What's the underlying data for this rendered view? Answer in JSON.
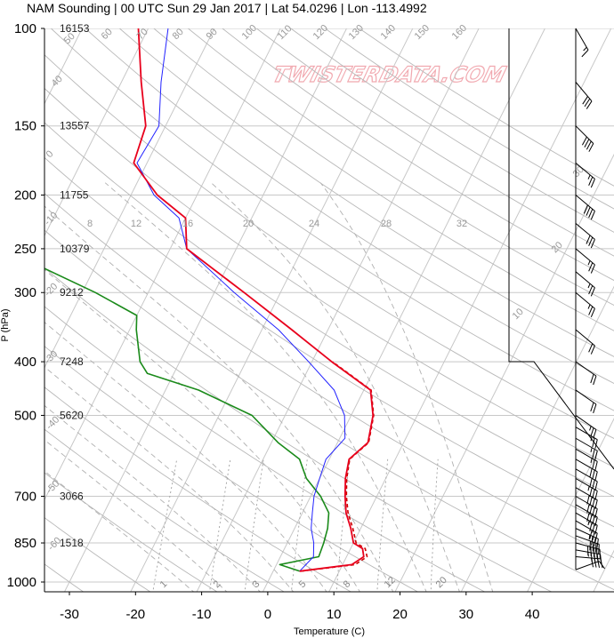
{
  "title": "NAM Sounding | 00 UTC Sun 29 Jan 2017 | Lat 54.0296 | Lon -113.4992",
  "watermark": "TWISTERDATA.COM",
  "colors": {
    "temperature": "#e8001c",
    "dewpoint": "#1a8a1a",
    "parcel": "#2222ff",
    "virtual_temp": "#cc0000",
    "grid": "#c8c8c8",
    "dry_adiabat": "#b8b8b8",
    "moist_adiabat": "#b0b0b0",
    "mixing_ratio": "#a0a0a0",
    "wind_barb": "#000000"
  },
  "chart_data": {
    "type": "skew-t log-p sounding",
    "title": "NAM Sounding | 00 UTC Sun 29 Jan 2017 | Lat 54.0296 | Lon -113.4992",
    "xlabel": "Temperature (C)",
    "ylabel": "P (hPa)",
    "xlim": [
      -34,
      50
    ],
    "ylim": [
      1050,
      100
    ],
    "y_scale": "log",
    "grid": true,
    "x_ticks": [
      -30,
      -20,
      -10,
      0,
      10,
      20,
      30,
      40
    ],
    "y_ticks": [
      100,
      150,
      200,
      250,
      300,
      400,
      500,
      700,
      850,
      1000
    ],
    "height_labels": [
      {
        "p": 100,
        "height_m": "16153"
      },
      {
        "p": 150,
        "height_m": "13557"
      },
      {
        "p": 200,
        "height_m": "11755"
      },
      {
        "p": 250,
        "height_m": "10379"
      },
      {
        "p": 300,
        "height_m": "9212"
      },
      {
        "p": 400,
        "height_m": "7248"
      },
      {
        "p": 500,
        "height_m": "5620"
      },
      {
        "p": 700,
        "height_m": "3066"
      },
      {
        "p": 850,
        "height_m": "1518"
      }
    ],
    "isotherm_labels": [
      {
        "t": -60,
        "label": "-60"
      },
      {
        "t": -50,
        "label": "-50"
      },
      {
        "t": -40,
        "label": "-40"
      },
      {
        "t": -30,
        "label": "-30"
      },
      {
        "t": -20,
        "label": "-20"
      },
      {
        "t": -10,
        "label": "-10"
      },
      {
        "t": 0,
        "label": "0"
      },
      {
        "t": 10,
        "label": "10"
      },
      {
        "t": 20,
        "label": "20"
      },
      {
        "t": 30,
        "label": "30"
      }
    ],
    "dry_adiabat_labels": [
      "40",
      "50",
      "60",
      "70",
      "80",
      "90",
      "100",
      "110",
      "120",
      "130",
      "140",
      "150",
      "160"
    ],
    "theta_e_labels": [
      "8",
      "12",
      "16",
      "20",
      "24",
      "28",
      "32"
    ],
    "mixing_ratio_labels": [
      "1",
      "2",
      "3",
      "5",
      "8",
      "12",
      "20"
    ],
    "series": [
      {
        "name": "Temperature",
        "points": [
          [
            956,
            4.0
          ],
          [
            930,
            11.4
          ],
          [
            900,
            12.6
          ],
          [
            870,
            11.8
          ],
          [
            850,
            10.0
          ],
          [
            800,
            8.5
          ],
          [
            750,
            6.6
          ],
          [
            700,
            5.2
          ],
          [
            650,
            3.9
          ],
          [
            600,
            3.0
          ],
          [
            560,
            4.6
          ],
          [
            500,
            3.3
          ],
          [
            450,
            1.0
          ],
          [
            400,
            -7.0
          ],
          [
            350,
            -15.5
          ],
          [
            300,
            -25.5
          ],
          [
            250,
            -37.5
          ],
          [
            220,
            -40.0
          ],
          [
            200,
            -46.0
          ],
          [
            175,
            -52.0
          ],
          [
            150,
            -53.0
          ],
          [
            125,
            -57.0
          ],
          [
            100,
            -61.5
          ]
        ]
      },
      {
        "name": "Virtual temperature",
        "points": [
          [
            956,
            4.2
          ],
          [
            930,
            11.9
          ],
          [
            900,
            13.1
          ],
          [
            870,
            12.2
          ],
          [
            850,
            10.4
          ],
          [
            800,
            8.8
          ],
          [
            750,
            6.9
          ],
          [
            700,
            5.4
          ],
          [
            650,
            4.1
          ],
          [
            600,
            3.1
          ],
          [
            560,
            4.7
          ],
          [
            500,
            3.4
          ],
          [
            450,
            1.1
          ],
          [
            400,
            -6.9
          ]
        ]
      },
      {
        "name": "Dewpoint",
        "points": [
          [
            956,
            4.0
          ],
          [
            930,
            0.5
          ],
          [
            900,
            5.8
          ],
          [
            850,
            5.5
          ],
          [
            800,
            5.0
          ],
          [
            750,
            4.0
          ],
          [
            700,
            1.5
          ],
          [
            650,
            -2.0
          ],
          [
            600,
            -4.5
          ],
          [
            560,
            -9.0
          ],
          [
            500,
            -15.0
          ],
          [
            450,
            -25.0
          ],
          [
            420,
            -34.0
          ],
          [
            400,
            -36.0
          ],
          [
            350,
            -39.0
          ],
          [
            330,
            -40.0
          ],
          [
            300,
            -48.0
          ],
          [
            270,
            -58.0
          ],
          [
            250,
            -62.0
          ],
          [
            220,
            -67.0
          ],
          [
            200,
            -71.0
          ],
          [
            175,
            -75.0
          ],
          [
            165,
            -80.0
          ],
          [
            125,
            -87.0
          ],
          [
            100,
            -95.0
          ]
        ]
      },
      {
        "name": "Parcel",
        "points": [
          [
            956,
            4.0
          ],
          [
            900,
            5.0
          ],
          [
            850,
            4.0
          ],
          [
            800,
            2.5
          ],
          [
            750,
            1.5
          ],
          [
            700,
            0.5
          ],
          [
            650,
            0.0
          ],
          [
            600,
            -0.5
          ],
          [
            550,
            0.8
          ],
          [
            500,
            -1.0
          ],
          [
            450,
            -4.5
          ],
          [
            400,
            -10.5
          ],
          [
            350,
            -17.5
          ],
          [
            300,
            -27.0
          ],
          [
            250,
            -37.5
          ],
          [
            220,
            -41.0
          ],
          [
            200,
            -46.5
          ],
          [
            175,
            -51.5
          ],
          [
            150,
            -51.0
          ],
          [
            125,
            -54.0
          ],
          [
            100,
            -57.0
          ]
        ]
      }
    ],
    "wind_barbs": [
      {
        "p": 950,
        "speed_kt": 10,
        "dir_deg": 250
      },
      {
        "p": 900,
        "speed_kt": 40,
        "dir_deg": 275
      },
      {
        "p": 875,
        "speed_kt": 45,
        "dir_deg": 280
      },
      {
        "p": 850,
        "speed_kt": 50,
        "dir_deg": 285
      },
      {
        "p": 825,
        "speed_kt": 40,
        "dir_deg": 290
      },
      {
        "p": 800,
        "speed_kt": 35,
        "dir_deg": 295
      },
      {
        "p": 775,
        "speed_kt": 30,
        "dir_deg": 300
      },
      {
        "p": 750,
        "speed_kt": 35,
        "dir_deg": 300
      },
      {
        "p": 725,
        "speed_kt": 40,
        "dir_deg": 300
      },
      {
        "p": 700,
        "speed_kt": 40,
        "dir_deg": 300
      },
      {
        "p": 675,
        "speed_kt": 40,
        "dir_deg": 300
      },
      {
        "p": 650,
        "speed_kt": 35,
        "dir_deg": 300
      },
      {
        "p": 625,
        "speed_kt": 30,
        "dir_deg": 300
      },
      {
        "p": 600,
        "speed_kt": 30,
        "dir_deg": 300
      },
      {
        "p": 575,
        "speed_kt": 25,
        "dir_deg": 300
      },
      {
        "p": 550,
        "speed_kt": 25,
        "dir_deg": 300
      },
      {
        "p": 525,
        "speed_kt": 25,
        "dir_deg": 300
      },
      {
        "p": 500,
        "speed_kt": 25,
        "dir_deg": 305
      },
      {
        "p": 450,
        "speed_kt": 20,
        "dir_deg": 305
      },
      {
        "p": 400,
        "speed_kt": 20,
        "dir_deg": 305
      },
      {
        "p": 350,
        "speed_kt": 20,
        "dir_deg": 310
      },
      {
        "p": 300,
        "speed_kt": 25,
        "dir_deg": 310
      },
      {
        "p": 275,
        "speed_kt": 25,
        "dir_deg": 310
      },
      {
        "p": 250,
        "speed_kt": 25,
        "dir_deg": 310
      },
      {
        "p": 225,
        "speed_kt": 30,
        "dir_deg": 310
      },
      {
        "p": 200,
        "speed_kt": 40,
        "dir_deg": 310
      },
      {
        "p": 175,
        "speed_kt": 25,
        "dir_deg": 310
      },
      {
        "p": 150,
        "speed_kt": 40,
        "dir_deg": 315
      },
      {
        "p": 125,
        "speed_kt": 30,
        "dir_deg": 320
      },
      {
        "p": 100,
        "speed_kt": 15,
        "dir_deg": 330
      }
    ]
  }
}
